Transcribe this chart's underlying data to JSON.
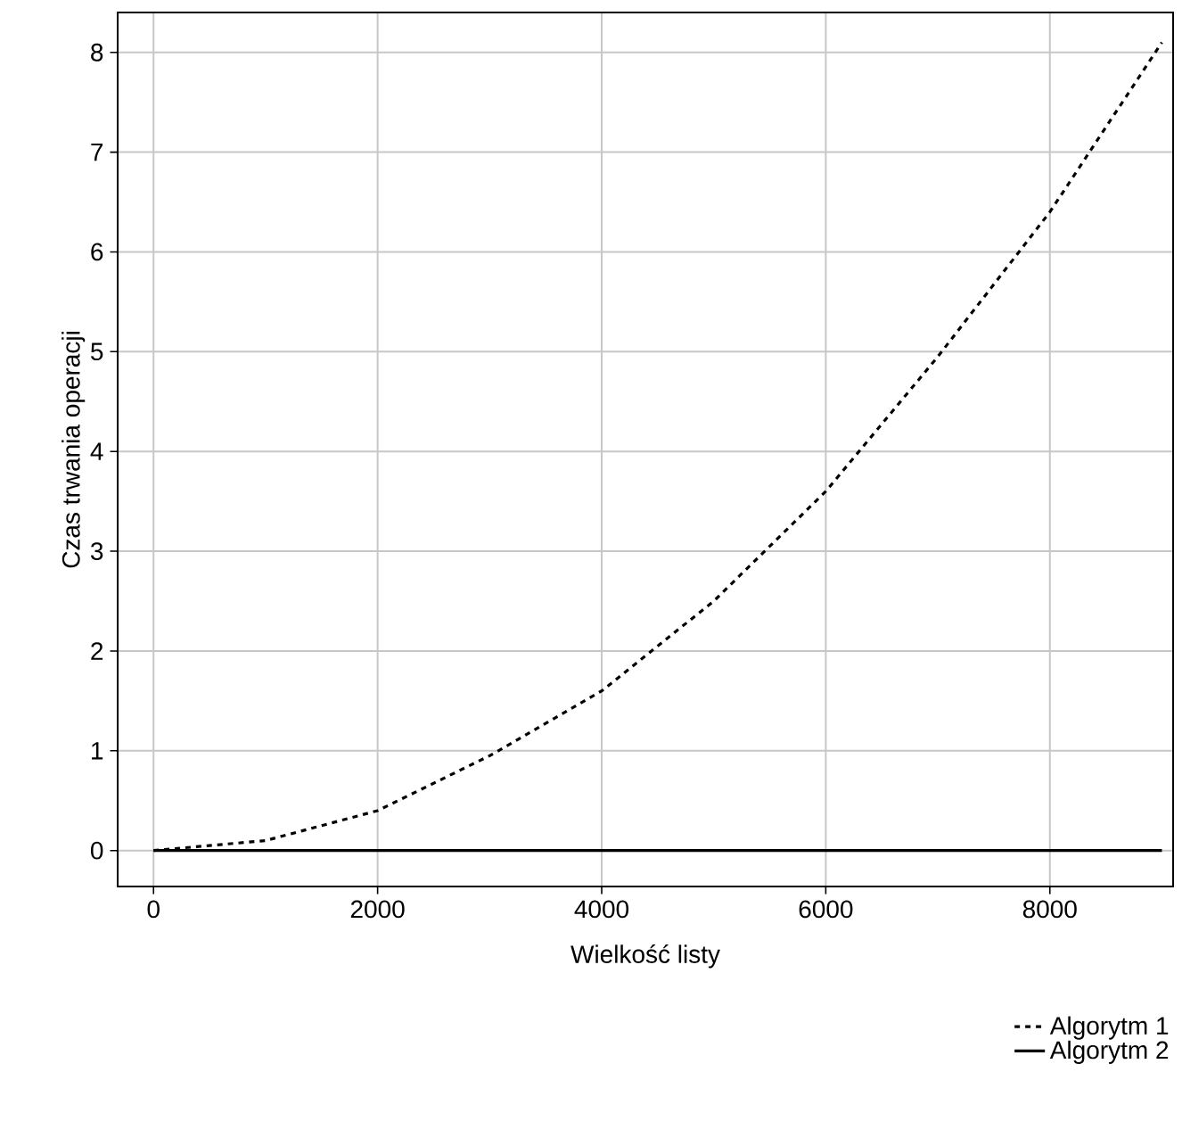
{
  "chart_data": {
    "type": "line",
    "xlabel": "Wielkość listy",
    "ylabel": "Czas trwania operacji",
    "x": [
      0,
      1000,
      2000,
      3000,
      4000,
      5000,
      6000,
      7000,
      8000,
      9000
    ],
    "series": [
      {
        "name": "Algorytm 1",
        "color": "#000000",
        "line_style": "dashed",
        "values": [
          0,
          0.1,
          0.4,
          0.95,
          1.6,
          2.5,
          3.6,
          4.95,
          6.4,
          8.1
        ]
      },
      {
        "name": "Algorytm 2",
        "color": "#000000",
        "line_style": "solid",
        "values": [
          0,
          0,
          0,
          0,
          0,
          0,
          0,
          0,
          0,
          0
        ]
      }
    ],
    "xlim": [
      -320,
      9100
    ],
    "ylim": [
      -0.36,
      8.4
    ],
    "xticks": [
      0,
      2000,
      4000,
      6000,
      8000
    ],
    "yticks": [
      0,
      1,
      2,
      3,
      4,
      5,
      6,
      7,
      8
    ],
    "grid": true,
    "legend": "bottom right",
    "marker": "none"
  }
}
